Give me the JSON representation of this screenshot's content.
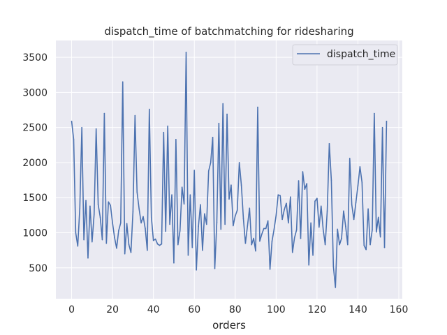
{
  "chart_data": {
    "type": "line",
    "title": "dispatch_time of batchmatching for ridesharing",
    "xlabel": "orders",
    "ylabel": "",
    "xlim": [
      -7.7,
      161.7
    ],
    "ylim": [
      60,
      3740
    ],
    "xticks": [
      0,
      20,
      40,
      60,
      80,
      100,
      120,
      140,
      160
    ],
    "yticks": [
      500,
      1000,
      1500,
      2000,
      2500,
      3000,
      3500
    ],
    "grid": true,
    "legend_position": "top-right",
    "colors": {
      "background": "#eaeaf2",
      "grid": "#ffffff",
      "line": "#4c72b0",
      "text": "#262626"
    },
    "series": [
      {
        "name": "dispatch_time",
        "x": [
          0,
          1,
          2,
          3,
          4,
          5,
          6,
          7,
          8,
          9,
          10,
          11,
          12,
          13,
          14,
          15,
          16,
          17,
          18,
          19,
          20,
          21,
          22,
          23,
          24,
          25,
          26,
          27,
          28,
          29,
          30,
          31,
          32,
          33,
          34,
          35,
          36,
          37,
          38,
          39,
          40,
          41,
          42,
          43,
          44,
          45,
          46,
          47,
          48,
          49,
          50,
          51,
          52,
          53,
          54,
          55,
          56,
          57,
          58,
          59,
          60,
          61,
          62,
          63,
          64,
          65,
          66,
          67,
          68,
          69,
          70,
          71,
          72,
          73,
          74,
          75,
          76,
          77,
          78,
          79,
          80,
          81,
          82,
          83,
          84,
          85,
          86,
          87,
          88,
          89,
          90,
          91,
          92,
          93,
          94,
          95,
          96,
          97,
          98,
          99,
          100,
          101,
          102,
          103,
          104,
          105,
          106,
          107,
          108,
          109,
          110,
          111,
          112,
          113,
          114,
          115,
          116,
          117,
          118,
          119,
          120,
          121,
          122,
          123,
          124,
          125,
          126,
          127,
          128,
          129,
          130,
          131,
          132,
          133,
          134,
          135,
          136,
          137,
          138,
          139,
          140,
          141,
          142,
          143,
          144,
          145,
          146,
          147,
          148,
          149,
          150,
          151,
          152,
          153,
          154
        ],
        "values": [
          2590,
          2330,
          1000,
          810,
          1350,
          2500,
          900,
          1460,
          640,
          1380,
          870,
          1260,
          2480,
          1400,
          1220,
          900,
          2700,
          850,
          1440,
          1390,
          1140,
          930,
          780,
          1030,
          1140,
          3150,
          700,
          1130,
          830,
          720,
          1300,
          2670,
          1580,
          1340,
          1140,
          1230,
          1060,
          750,
          2760,
          1220,
          890,
          910,
          840,
          820,
          840,
          2430,
          1020,
          2520,
          1120,
          1540,
          570,
          2330,
          830,
          1030,
          1650,
          1410,
          3570,
          680,
          1540,
          790,
          1890,
          470,
          1090,
          1400,
          750,
          1270,
          1120,
          1880,
          2000,
          2360,
          490,
          1150,
          2560,
          1050,
          2840,
          1120,
          2690,
          1480,
          1680,
          1100,
          1240,
          1320,
          2000,
          1680,
          1200,
          850,
          1100,
          1350,
          830,
          920,
          740,
          2790,
          880,
          980,
          1060,
          1060,
          1170,
          480,
          880,
          1050,
          1250,
          1540,
          1530,
          1190,
          1330,
          1420,
          1140,
          1510,
          720,
          930,
          1040,
          1740,
          920,
          1870,
          1620,
          1700,
          540,
          1140,
          680,
          1450,
          1490,
          1080,
          1380,
          1050,
          830,
          1310,
          2270,
          1750,
          520,
          220,
          1050,
          830,
          920,
          1310,
          1090,
          830,
          2060,
          1400,
          1190,
          1430,
          1670,
          1940,
          1720,
          820,
          760,
          1340,
          830,
          1040,
          2700,
          1010,
          1220,
          940,
          2500,
          790,
          2590
        ]
      }
    ]
  }
}
